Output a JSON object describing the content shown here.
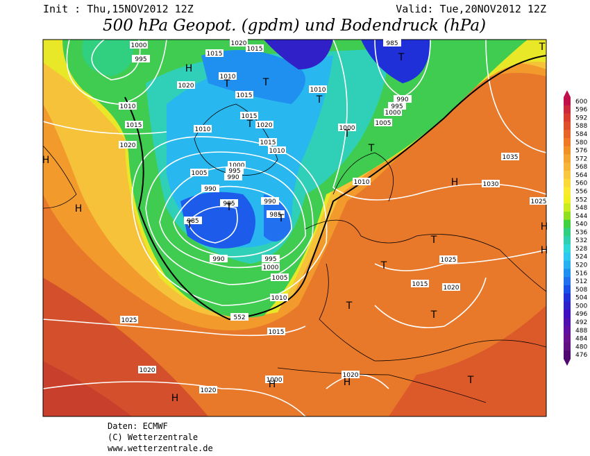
{
  "header": {
    "init": "Init : Thu,15NOV2012 12Z",
    "valid": "Valid: Tue,20NOV2012 12Z",
    "title": "500 hPa Geopot. (gpdm) und Bodendruck (hPa)"
  },
  "colorbar": {
    "levels": [
      600,
      596,
      592,
      588,
      584,
      580,
      576,
      572,
      568,
      564,
      560,
      556,
      552,
      548,
      544,
      540,
      536,
      532,
      528,
      524,
      520,
      516,
      512,
      508,
      504,
      500,
      496,
      492,
      488,
      484,
      480,
      476
    ]
  },
  "map_labels": [
    "1000",
    "995",
    "1015",
    "1020",
    "1015",
    "1010",
    "1020",
    "1015",
    "1010",
    "1015",
    "1020",
    "1015",
    "1020",
    "1010",
    "1015",
    "1010",
    "1005",
    "1000",
    "995",
    "990",
    "990",
    "985",
    "985",
    "990",
    "985",
    "990",
    "995",
    "1000",
    "1005",
    "1010",
    "1015",
    "1025",
    "1020",
    "1020",
    "1000",
    "1020",
    "1010",
    "1000",
    "1005",
    "1000",
    "995",
    "990",
    "985",
    "1010",
    "1035",
    "1030",
    "1025",
    "1025",
    "1015",
    "1020",
    "552"
  ],
  "pressure_centers": [
    "H",
    "T",
    "T",
    "T",
    "T",
    "T",
    "T",
    "T",
    "T",
    "H",
    "H",
    "H",
    "H",
    "H",
    "T",
    "T",
    "T",
    "T",
    "T",
    "T",
    "T",
    "H",
    "H",
    "H",
    "T"
  ],
  "footer": {
    "source": "Daten: ECMWF",
    "copyright": "(C) Wetterzentrale",
    "url": "www.wetterzentrale.de"
  }
}
